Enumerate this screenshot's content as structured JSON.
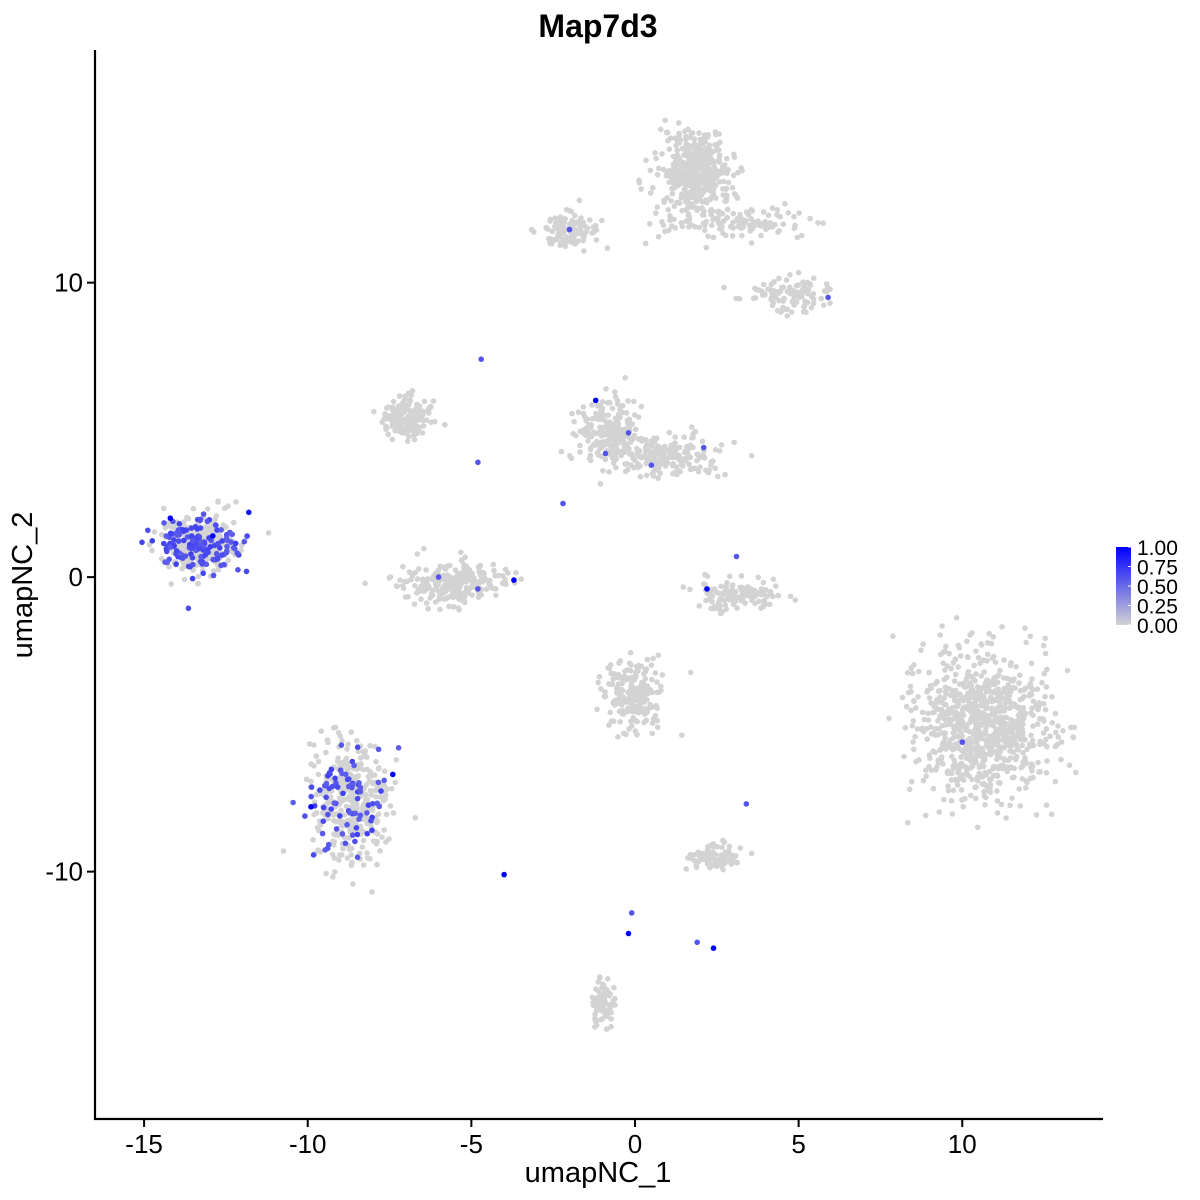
{
  "chart_data": {
    "type": "scatter",
    "title": "Map7d3",
    "xlabel": "umapNC_1",
    "ylabel": "umapNC_2",
    "xlim": [
      -16.5,
      14.3
    ],
    "ylim": [
      -18.4,
      17.9
    ],
    "xticks": [
      -15,
      -10,
      -5,
      0,
      5,
      10
    ],
    "yticks": [
      -10,
      0,
      10
    ],
    "grid": false,
    "legend": {
      "position": "right",
      "type": "colorbar",
      "range": [
        0,
        1
      ],
      "ticks": [
        "1.00",
        "0.75",
        "0.50",
        "0.25",
        "0.00"
      ],
      "low_color": "#d3d3d3",
      "high_color": "#0000ff"
    },
    "clusters": [
      {
        "id": "c1",
        "cx": 1.8,
        "cy": 13.8,
        "rx": 1.1,
        "ry": 1.3,
        "n": 420
      },
      {
        "id": "c2",
        "cx": 3.0,
        "cy": 12.0,
        "rx": 2.2,
        "ry": 0.6,
        "n": 120
      },
      {
        "id": "c3",
        "cx": -2.0,
        "cy": 11.8,
        "rx": 0.9,
        "ry": 0.6,
        "n": 110
      },
      {
        "id": "c4",
        "cx": 4.7,
        "cy": 9.6,
        "rx": 1.2,
        "ry": 0.6,
        "n": 110
      },
      {
        "id": "c5",
        "cx": -7.0,
        "cy": 5.4,
        "rx": 0.9,
        "ry": 0.7,
        "n": 150
      },
      {
        "id": "c6",
        "cx": -5.5,
        "cy": -0.2,
        "rx": 1.5,
        "ry": 0.7,
        "n": 260
      },
      {
        "id": "c7",
        "cx": -0.9,
        "cy": 4.9,
        "rx": 0.9,
        "ry": 1.1,
        "n": 200
      },
      {
        "id": "c8",
        "cx": 0.9,
        "cy": 4.1,
        "rx": 1.7,
        "ry": 0.7,
        "n": 200
      },
      {
        "id": "c9",
        "cx": 3.2,
        "cy": -0.6,
        "rx": 1.3,
        "ry": 0.5,
        "n": 130
      },
      {
        "id": "c10",
        "cx": -13.3,
        "cy": 1.1,
        "rx": 1.1,
        "ry": 1.0,
        "n": 300
      },
      {
        "id": "c11",
        "cx": -8.7,
        "cy": -7.6,
        "rx": 1.2,
        "ry": 2.0,
        "n": 360
      },
      {
        "id": "c12",
        "cx": 0.0,
        "cy": -4.0,
        "rx": 0.9,
        "ry": 1.2,
        "n": 210
      },
      {
        "id": "c13",
        "cx": 10.6,
        "cy": -5.0,
        "rx": 2.0,
        "ry": 2.4,
        "n": 900
      },
      {
        "id": "c14",
        "cx": 2.5,
        "cy": -9.5,
        "rx": 0.8,
        "ry": 0.4,
        "n": 80
      },
      {
        "id": "c15",
        "cx": -1.0,
        "cy": -14.5,
        "rx": 0.4,
        "ry": 0.8,
        "n": 80
      }
    ],
    "highlight_points": [
      {
        "x": -14.2,
        "y": 2.0,
        "v": 1.0
      },
      {
        "x": -13.8,
        "y": 1.6,
        "v": 0.7
      },
      {
        "x": -12.9,
        "y": 1.4,
        "v": 1.0
      },
      {
        "x": -11.8,
        "y": 2.2,
        "v": 0.9
      },
      {
        "x": -9.9,
        "y": -7.8,
        "v": 1.0
      },
      {
        "x": -7.4,
        "y": -6.7,
        "v": 1.0
      },
      {
        "x": -4.0,
        "y": -10.1,
        "v": 1.0
      },
      {
        "x": -3.7,
        "y": -0.1,
        "v": 1.0
      },
      {
        "x": -1.2,
        "y": 6.0,
        "v": 1.0
      },
      {
        "x": 2.2,
        "y": -0.4,
        "v": 1.0
      },
      {
        "x": -0.2,
        "y": -12.1,
        "v": 1.0
      },
      {
        "x": 2.4,
        "y": -12.6,
        "v": 1.0
      },
      {
        "x": -2.0,
        "y": 11.8,
        "v": 0.6
      },
      {
        "x": 5.9,
        "y": 9.5,
        "v": 0.6
      },
      {
        "x": -4.7,
        "y": 7.4,
        "v": 0.6
      },
      {
        "x": -0.2,
        "y": 4.9,
        "v": 0.6
      },
      {
        "x": 0.5,
        "y": 3.8,
        "v": 0.6
      },
      {
        "x": 2.1,
        "y": 4.4,
        "v": 0.6
      },
      {
        "x": -0.9,
        "y": 4.2,
        "v": 0.6
      },
      {
        "x": -4.8,
        "y": 3.9,
        "v": 0.6
      },
      {
        "x": -2.2,
        "y": 2.5,
        "v": 0.6
      },
      {
        "x": -6.0,
        "y": 0.0,
        "v": 0.6
      },
      {
        "x": 3.1,
        "y": 0.7,
        "v": 0.6
      },
      {
        "x": -4.8,
        "y": -0.4,
        "v": 0.6
      },
      {
        "x": 10.0,
        "y": -5.6,
        "v": 0.6
      },
      {
        "x": 3.4,
        "y": -7.7,
        "v": 0.6
      },
      {
        "x": -0.1,
        "y": -11.4,
        "v": 0.6
      },
      {
        "x": 1.9,
        "y": -12.4,
        "v": 0.6
      }
    ]
  }
}
